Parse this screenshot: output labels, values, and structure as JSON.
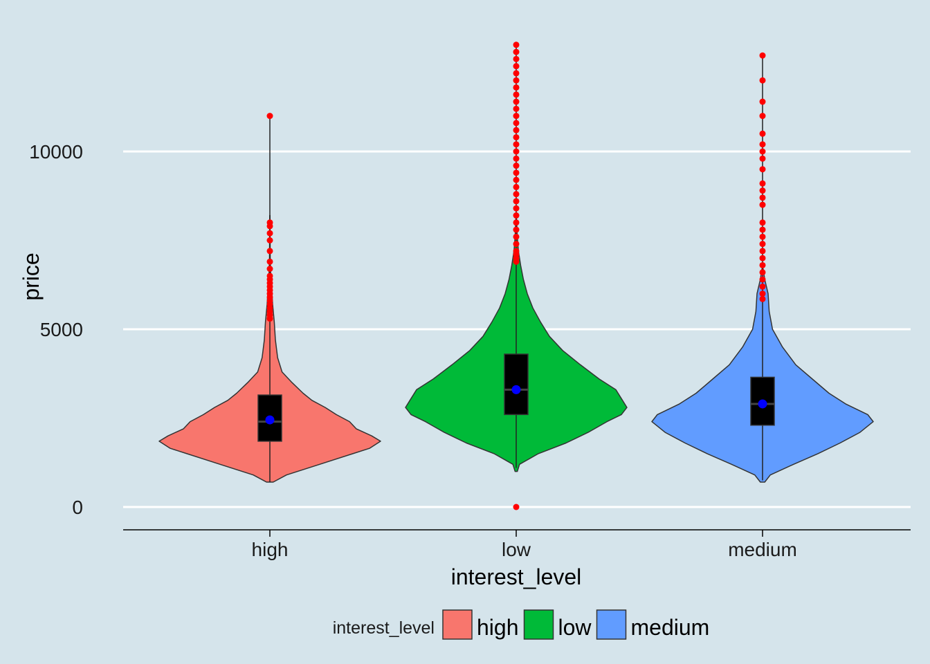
{
  "chart_data": {
    "type": "violin",
    "xlabel": "interest_level",
    "ylabel": "price",
    "categories": [
      "high",
      "low",
      "medium"
    ],
    "ylim": [
      -650,
      13300
    ],
    "y_ticks": [
      0,
      5000,
      10000
    ],
    "grid": {
      "horizontal": true,
      "vertical": false
    },
    "legend": {
      "title": "interest_level",
      "position": "bottom",
      "items": [
        "high",
        "low",
        "medium"
      ]
    },
    "series": [
      {
        "name": "high",
        "color": "#f8766d",
        "q1": 1850,
        "median": 2400,
        "q3": 3150,
        "mean": 2450,
        "whisker_low": 700,
        "whisker_high": 5200,
        "max": 11000,
        "outliers": [
          5300,
          5400,
          5500,
          5600,
          5700,
          5800,
          5900,
          6000,
          6100,
          6200,
          6300,
          6400,
          6500,
          6700,
          6900,
          7200,
          7500,
          7700,
          7900,
          8000,
          11000
        ],
        "density": [
          [
            700,
            0.03
          ],
          [
            900,
            0.15
          ],
          [
            1200,
            0.45
          ],
          [
            1500,
            0.75
          ],
          [
            1650,
            0.9
          ],
          [
            1850,
            1.0
          ],
          [
            2000,
            0.92
          ],
          [
            2200,
            0.78
          ],
          [
            2400,
            0.72
          ],
          [
            2600,
            0.6
          ],
          [
            2800,
            0.5
          ],
          [
            3000,
            0.38
          ],
          [
            3200,
            0.3
          ],
          [
            3500,
            0.2
          ],
          [
            3800,
            0.11
          ],
          [
            4200,
            0.07
          ],
          [
            4700,
            0.05
          ],
          [
            5200,
            0.04
          ],
          [
            5700,
            0.025
          ],
          [
            6200,
            0.015
          ],
          [
            6500,
            0.008
          ],
          [
            7000,
            0.003
          ],
          [
            8200,
            0.001
          ]
        ]
      },
      {
        "name": "low",
        "color": "#00ba38",
        "q1": 2600,
        "median": 3300,
        "q3": 4300,
        "mean": 3300,
        "whisker_low": 1100,
        "whisker_high": 6850,
        "max": 13000,
        "outliers": [
          0,
          6900,
          7000,
          7100,
          7200,
          7400,
          7600,
          7800,
          8000,
          8200,
          8400,
          8600,
          8800,
          9000,
          9200,
          9400,
          9600,
          9800,
          10000,
          10200,
          10400,
          10600,
          10800,
          11000,
          11200,
          11400,
          11600,
          11800,
          12000,
          12200,
          12400,
          12600,
          12800,
          13000
        ],
        "density": [
          [
            1000,
            0.01
          ],
          [
            1200,
            0.03
          ],
          [
            1500,
            0.2
          ],
          [
            1800,
            0.45
          ],
          [
            2100,
            0.65
          ],
          [
            2400,
            0.82
          ],
          [
            2600,
            0.95
          ],
          [
            2800,
            1.0
          ],
          [
            3000,
            0.96
          ],
          [
            3300,
            0.9
          ],
          [
            3600,
            0.75
          ],
          [
            4000,
            0.58
          ],
          [
            4400,
            0.42
          ],
          [
            4800,
            0.3
          ],
          [
            5200,
            0.22
          ],
          [
            5600,
            0.15
          ],
          [
            6000,
            0.1
          ],
          [
            6400,
            0.065
          ],
          [
            6800,
            0.04
          ],
          [
            7200,
            0.02
          ],
          [
            7600,
            0.01
          ],
          [
            8100,
            0.003
          ]
        ]
      },
      {
        "name": "medium",
        "color": "#619cff",
        "q1": 2300,
        "median": 2900,
        "q3": 3650,
        "mean": 2900,
        "whisker_low": 750,
        "whisker_high": 5800,
        "max": 12700,
        "outliers": [
          5850,
          6000,
          6200,
          6400,
          6600,
          6800,
          7000,
          7200,
          7400,
          7600,
          7800,
          8000,
          8500,
          8700,
          8900,
          9100,
          9500,
          9800,
          10000,
          10200,
          10500,
          11000,
          11400,
          12000,
          12700
        ],
        "density": [
          [
            700,
            0.02
          ],
          [
            900,
            0.07
          ],
          [
            1200,
            0.28
          ],
          [
            1500,
            0.5
          ],
          [
            1800,
            0.7
          ],
          [
            2100,
            0.88
          ],
          [
            2400,
            1.0
          ],
          [
            2600,
            0.95
          ],
          [
            2900,
            0.75
          ],
          [
            3200,
            0.6
          ],
          [
            3600,
            0.45
          ],
          [
            4000,
            0.3
          ],
          [
            4500,
            0.18
          ],
          [
            5000,
            0.09
          ],
          [
            5500,
            0.06
          ],
          [
            6000,
            0.05
          ],
          [
            6400,
            0.02
          ],
          [
            6700,
            0.005
          ]
        ]
      }
    ]
  }
}
